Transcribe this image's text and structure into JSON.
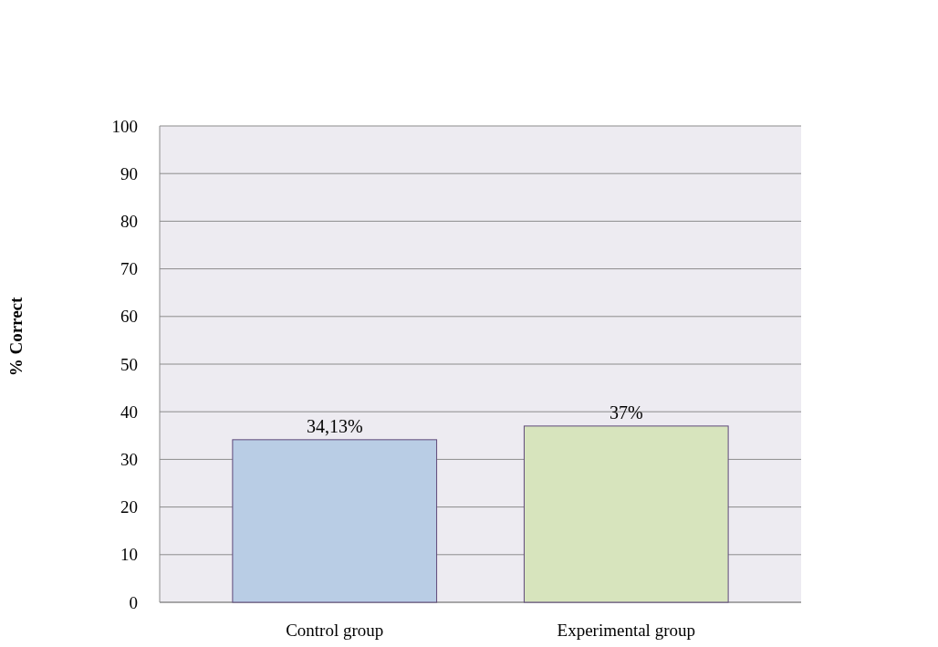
{
  "chart_data": {
    "type": "bar",
    "ylabel": "% Correct",
    "categories": [
      "Control group",
      "Experimental group"
    ],
    "values": [
      34.13,
      37
    ],
    "colors": [
      "#b9cde5",
      "#d7e4bd"
    ],
    "value_labels": [
      "34,13%",
      "37%"
    ],
    "ylim": [
      0,
      100
    ],
    "yticks": [
      0,
      10,
      20,
      30,
      40,
      50,
      60,
      70,
      80,
      90,
      100
    ],
    "grid": "y"
  }
}
